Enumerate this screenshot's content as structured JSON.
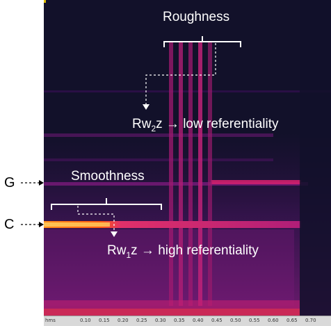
{
  "annotations": {
    "roughness": "Roughness",
    "smoothness": "Smoothness",
    "rw2z_prefix": "Rw",
    "rw2z_sub": "2",
    "rw2z_suffix": "z",
    "rw2z_arrow": "→",
    "rw2z_text": "low referentiality",
    "rw1z_prefix": "Rw",
    "rw1z_sub": "1",
    "rw1z_suffix": "z",
    "rw1z_arrow": "→",
    "rw1z_text": "high referentiality"
  },
  "pitch_labels": {
    "g": "G",
    "c": "C"
  },
  "time_axis": {
    "unit": "hms",
    "ticks": [
      "0.10",
      "0.15",
      "0.20",
      "0.25",
      "0.30",
      "0.35",
      "0.40",
      "0.45",
      "0.50",
      "0.55",
      "0.60",
      "0.65",
      "0.70"
    ]
  },
  "colors": {
    "background": "#12112a",
    "band_hot": "#ff6a00",
    "band_mid": "#c8207a",
    "annotation": "#ffffff"
  }
}
